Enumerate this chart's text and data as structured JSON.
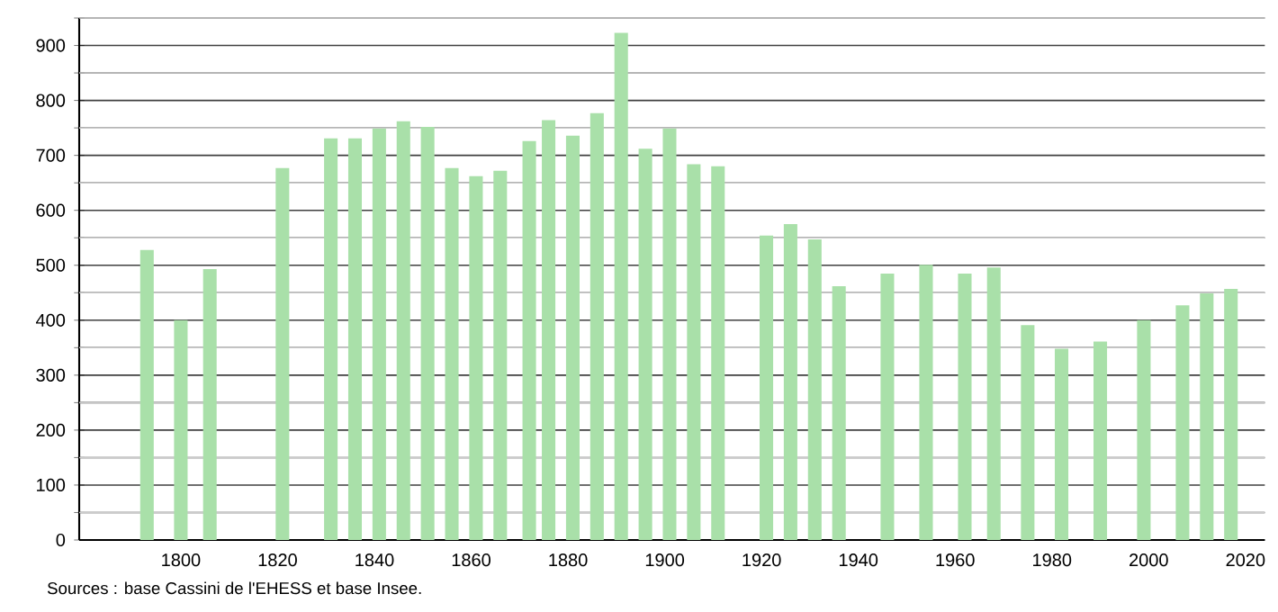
{
  "chart_data": {
    "type": "bar",
    "x": [
      1793,
      1800,
      1806,
      1821,
      1831,
      1836,
      1841,
      1846,
      1851,
      1856,
      1861,
      1866,
      1872,
      1876,
      1881,
      1886,
      1891,
      1896,
      1901,
      1906,
      1911,
      1921,
      1926,
      1931,
      1936,
      1946,
      1954,
      1962,
      1968,
      1975,
      1982,
      1990,
      1999,
      2007,
      2012,
      2017
    ],
    "values": [
      528,
      400,
      493,
      677,
      731,
      731,
      749,
      762,
      752,
      677,
      662,
      672,
      726,
      764,
      736,
      777,
      923,
      712,
      749,
      684,
      680,
      554,
      575,
      547,
      462,
      485,
      501,
      485,
      496,
      391,
      348,
      361,
      400,
      427,
      449,
      457
    ],
    "color": "#a9e0a9",
    "xlim": [
      1779,
      2024
    ],
    "xticks": [
      1800,
      1820,
      1840,
      1860,
      1880,
      1900,
      1920,
      1940,
      1960,
      1980,
      2000,
      2020
    ],
    "ylim": [
      0,
      950
    ],
    "yticks": [
      0,
      {
        "value": 50,
        "label": null
      },
      100,
      {
        "value": 150,
        "label": null
      },
      200,
      {
        "value": 250,
        "label": null
      },
      300,
      {
        "value": 350,
        "label": null
      },
      400,
      {
        "value": 450,
        "label": null
      },
      500,
      {
        "value": 550,
        "label": null
      },
      600,
      {
        "value": 650,
        "label": null
      },
      700,
      {
        "value": 750,
        "label": null
      },
      800,
      {
        "value": 850,
        "label": null
      },
      900,
      {
        "value": 950,
        "label": null
      }
    ],
    "grid": "y",
    "annotations": [
      "Sources : base Cassini de l'EHESS et base Insee."
    ]
  }
}
